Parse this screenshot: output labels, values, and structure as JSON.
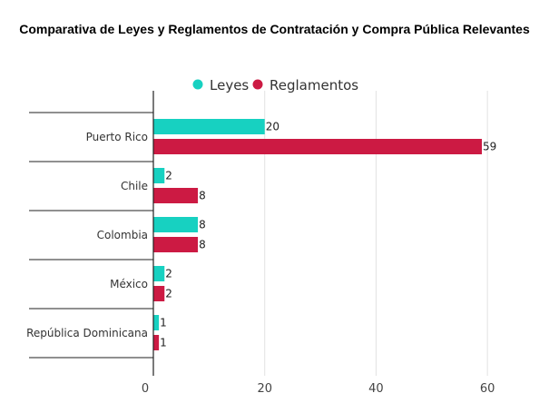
{
  "chart_data": {
    "type": "bar",
    "orientation": "horizontal",
    "title": "Comparativa de Leyes y Reglamentos de Contratación y Compra Pública Relevantes",
    "categories": [
      "Puerto Rico",
      "Chile",
      "Colombia",
      "México",
      "República Dominicana"
    ],
    "series": [
      {
        "name": "Leyes",
        "color": "#17d1c1",
        "values": [
          20,
          2,
          8,
          2,
          1
        ]
      },
      {
        "name": "Reglamentos",
        "color": "#cc1a43",
        "values": [
          59,
          8,
          8,
          2,
          1
        ]
      }
    ],
    "xlim": [
      0,
      70
    ],
    "xticks": [
      0,
      20,
      40,
      60
    ],
    "xlabel": "",
    "ylabel": "",
    "grid": "vertical",
    "legend": "top"
  }
}
